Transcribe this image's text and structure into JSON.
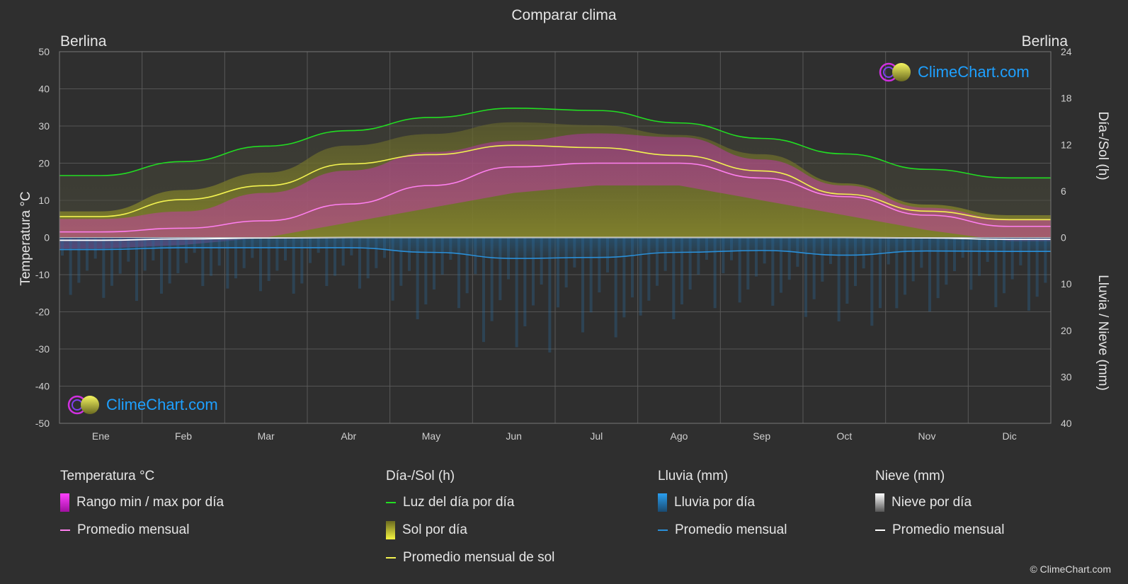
{
  "title": "Comparar clima",
  "location_left": "Berlina",
  "location_right": "Berlina",
  "left_axis_label": "Temperatura °C",
  "right_axis_label_top": "Día-/Sol (h)",
  "right_axis_label_bottom": "Lluvia / Nieve (mm)",
  "logo_text": "ClimeChart.com",
  "copyright": "© ClimeChart.com",
  "colors": {
    "background": "#2f2f2f",
    "temp_range": "#e020e0",
    "temp_avg": "#ff7ff0",
    "daylight": "#22dd22",
    "sunshine": "#d8d830",
    "sunshine_avg": "#f2f250",
    "rain": "#2a8fd8",
    "rain_avg": "#2a8fd8",
    "snow": "#dddddd",
    "snow_avg": "#ffffff",
    "logo": "#1ea0ff"
  },
  "legend": {
    "temperature": {
      "title": "Temperatura °C",
      "range_label": "Rango min / max por día",
      "avg_label": "Promedio mensual"
    },
    "sun": {
      "title": "Día-/Sol (h)",
      "daylight_label": "Luz del día por día",
      "sunshine_label": "Sol por día",
      "sunshine_avg_label": "Promedio mensual de sol"
    },
    "rain": {
      "title": "Lluvia (mm)",
      "rain_label": "Lluvia por día",
      "avg_label": "Promedio mensual"
    },
    "snow": {
      "title": "Nieve (mm)",
      "snow_label": "Nieve por día",
      "avg_label": "Promedio mensual"
    }
  },
  "chart_data": {
    "type": "line",
    "categories": [
      "Ene",
      "Feb",
      "Mar",
      "Abr",
      "May",
      "Jun",
      "Jul",
      "Ago",
      "Sep",
      "Oct",
      "Nov",
      "Dic"
    ],
    "y_left": {
      "label": "Temperatura °C",
      "range": [
        -50,
        50
      ],
      "ticks": [
        50,
        40,
        30,
        20,
        10,
        0,
        -10,
        -20,
        -30,
        -40,
        -50
      ]
    },
    "y_right_top": {
      "label": "Día-/Sol (h)",
      "range": [
        0,
        24
      ],
      "ticks": [
        24,
        18,
        12,
        6,
        0
      ]
    },
    "y_right_bottom": {
      "label": "Lluvia / Nieve (mm)",
      "range": [
        0,
        40
      ],
      "ticks": [
        0,
        10,
        20,
        30,
        40
      ]
    },
    "grid": true,
    "series": [
      {
        "name": "Luz del día por día",
        "axis": "sun_hours",
        "values": [
          8.0,
          9.8,
          11.8,
          13.8,
          15.5,
          16.7,
          16.4,
          14.8,
          12.8,
          10.8,
          8.8,
          7.7
        ]
      },
      {
        "name": "Promedio mensual de sol",
        "axis": "sun_hours",
        "values": [
          2.7,
          4.9,
          6.7,
          9.5,
          10.7,
          11.9,
          11.6,
          10.6,
          8.6,
          5.6,
          3.4,
          2.3
        ]
      },
      {
        "name": "Promedio mensual",
        "axis": "temperature",
        "values": [
          1.5,
          2.5,
          4.5,
          9.0,
          14.0,
          19.0,
          20.0,
          20.0,
          16.0,
          11.0,
          6.0,
          3.0
        ]
      },
      {
        "name": "Promedio mensual",
        "axis": "rain_mm",
        "values": [
          2.6,
          2.2,
          2.2,
          2.2,
          3.2,
          4.5,
          4.3,
          3.2,
          2.8,
          3.8,
          2.9,
          3.0
        ]
      },
      {
        "name": "Promedio mensual",
        "axis": "snow_mm",
        "values": [
          0.6,
          0.3,
          0.1,
          0.0,
          0.0,
          0.0,
          0.0,
          0.0,
          0.0,
          0.0,
          0.1,
          0.4
        ]
      }
    ],
    "temp_range": {
      "min": [
        -3,
        -2,
        0,
        4,
        8,
        12,
        14,
        14,
        10,
        6,
        2,
        -1
      ],
      "max": [
        5,
        7,
        12,
        18,
        23,
        26,
        28,
        27,
        21,
        14,
        8,
        5
      ]
    }
  }
}
